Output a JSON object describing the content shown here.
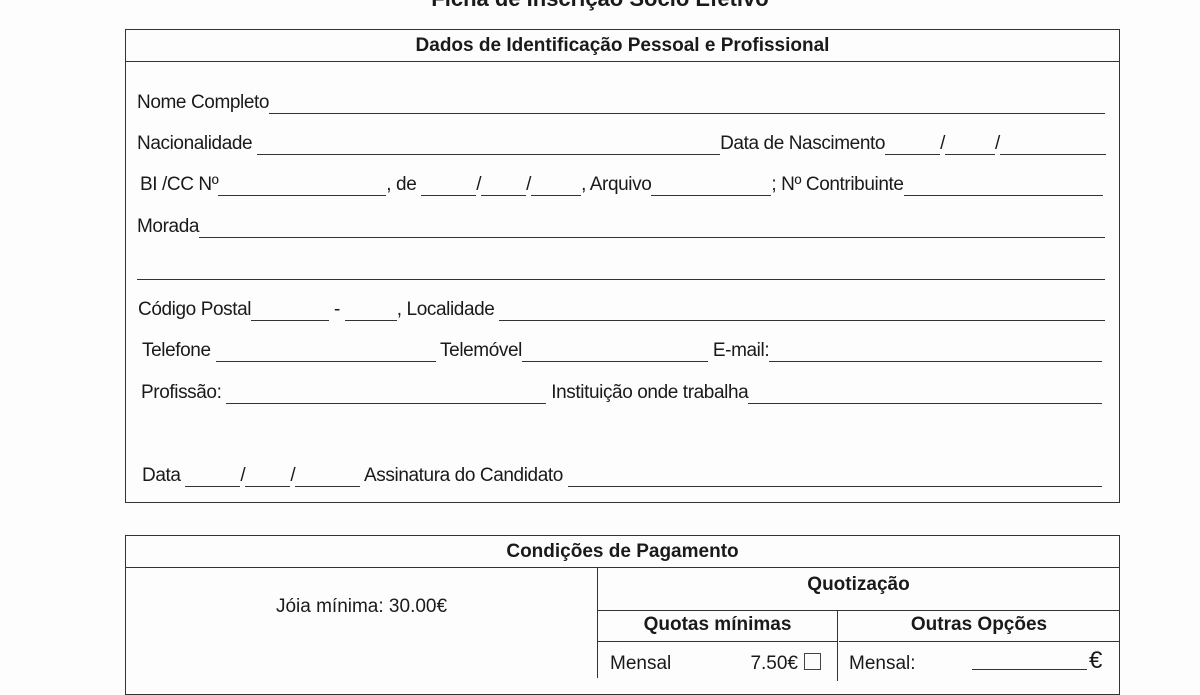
{
  "title": "Ficha de Inscrição Sócio Efetivo",
  "section1": {
    "header": "Dados de Identificação Pessoal e Profissional",
    "nome": "Nome Completo",
    "nacionalidade": "Nacionalidade ",
    "data_nascimento": "Data de Nascimento",
    "bi": "BI /CC Nº",
    "de": ", de ",
    "arquivo": ", Arquivo",
    "contribuinte": "; Nº Contribuinte",
    "morada": "Morada",
    "codigo_postal": "Código Postal",
    "dash": " - ",
    "localidade": ", Localidade ",
    "telefone": "Telefone ",
    "telemovel": " Telemóvel",
    "email": " E-mail:",
    "profissao": "Profissão: ",
    "instituicao": " Instituição onde trabalha",
    "data": "Data ",
    "assinatura": " Assinatura do Candidato ",
    "slash": "/"
  },
  "section2": {
    "header": "Condições de Pagamento",
    "joia": "Jóia mínima: 30.00€",
    "quotizacao": "Quotização",
    "quotas_minimas": "Quotas mínimas",
    "outras_opcoes": "Outras Opções",
    "mensal_label": "Mensal",
    "mensal_value": "7.50€",
    "mensal_outras": "Mensal:",
    "euro": "€"
  }
}
